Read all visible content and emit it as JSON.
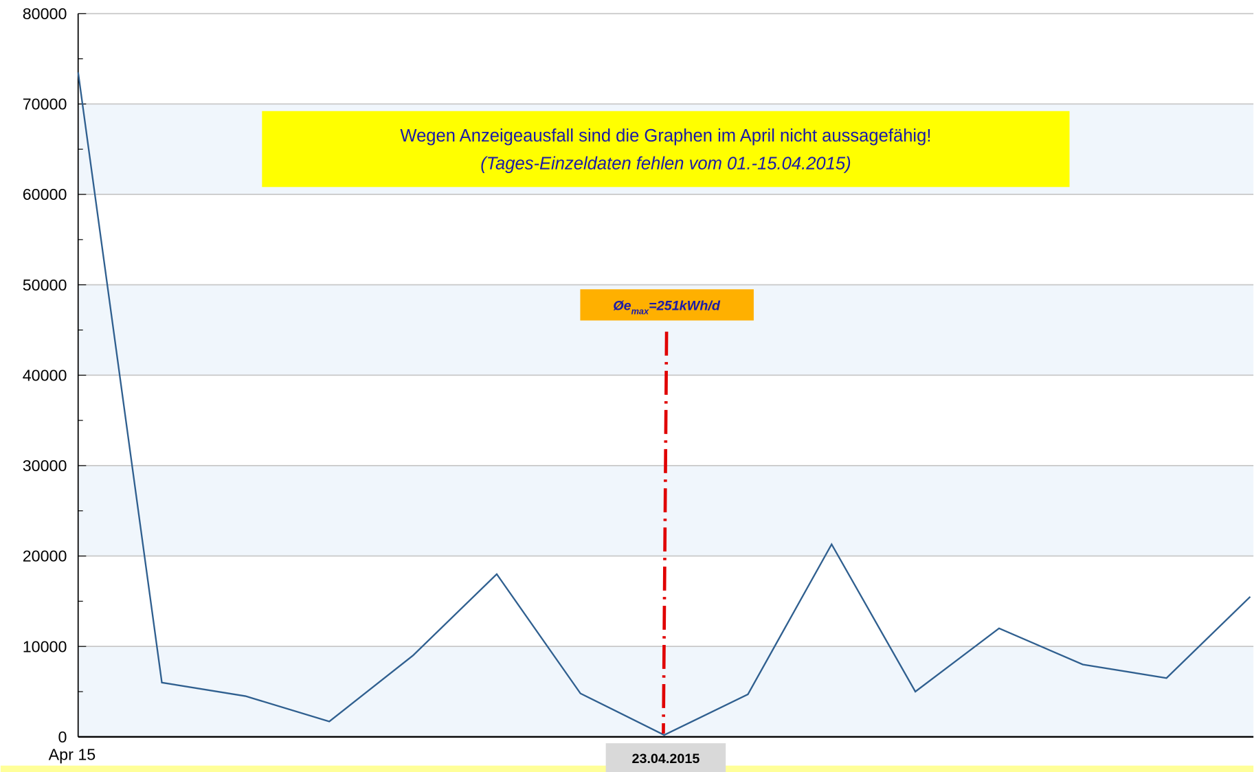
{
  "chart_data": {
    "type": "line",
    "categories": [
      "Apr 15",
      null,
      null,
      null,
      null,
      null,
      null,
      null,
      null,
      null,
      null,
      null,
      null,
      null,
      null
    ],
    "series": [
      {
        "color": "#2f5f8f",
        "values": [
          73500,
          6000,
          4500,
          1700,
          9000,
          18000,
          4800,
          200,
          4700,
          21300,
          5000,
          12000,
          8000,
          6500,
          15500
        ]
      }
    ],
    "ylim": [
      0,
      80000
    ],
    "yticks": [
      0,
      10000,
      20000,
      30000,
      40000,
      50000,
      60000,
      70000,
      80000
    ],
    "grid": true,
    "annotations": {
      "notice": [
        "Wegen Anzeigeausfall sind die Graphen im April nicht aussagefähig!",
        "(Tages-Einzeldaten fehlen vom 01.-15.04.2015)"
      ],
      "emax_prefix": "Øe",
      "emax_sub": "max",
      "emax_suffix": "=251kWh/d",
      "date_label": "23.04.2015"
    }
  }
}
